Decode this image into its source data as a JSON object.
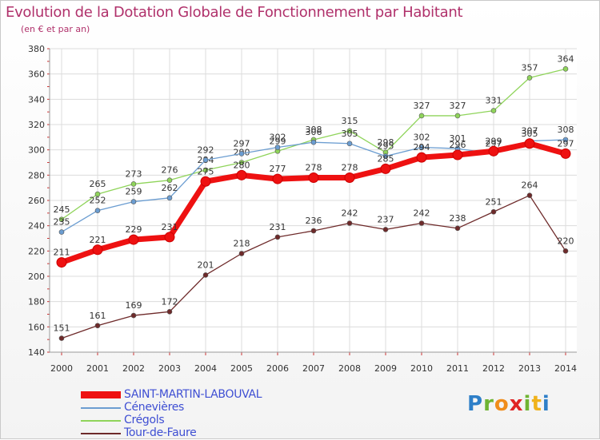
{
  "chart_data": {
    "type": "line",
    "title": "Evolution de la Dotation Globale de Fonctionnement par Habitant",
    "subtitle": "(en € et par an)",
    "xlabel": "",
    "ylabel": "",
    "ylim": [
      140,
      380
    ],
    "yticks": [
      140,
      160,
      180,
      200,
      220,
      240,
      260,
      280,
      300,
      320,
      340,
      360,
      380
    ],
    "categories": [
      "2000",
      "2001",
      "2002",
      "2003",
      "2004",
      "2005",
      "2006",
      "2007",
      "2008",
      "2009",
      "2010",
      "2011",
      "2012",
      "2013",
      "2014"
    ],
    "grid": true,
    "legend_position": "bottom-left",
    "series": [
      {
        "name": "SAINT-MARTIN-LABOUVAL",
        "color": "#ee1111",
        "values": [
          211,
          221,
          229,
          231,
          275,
          280,
          277,
          278,
          278,
          285,
          294,
          296,
          299,
          305,
          297
        ]
      },
      {
        "name": "Cénevières",
        "color": "#6b9dd1",
        "values": [
          235,
          252,
          259,
          262,
          292,
          297,
          302,
          306,
          305,
          295,
          302,
          301,
          297,
          307,
          308
        ]
      },
      {
        "name": "Crégols",
        "color": "#8fd45a",
        "values": [
          245,
          265,
          273,
          276,
          284,
          290,
          299,
          308,
          315,
          298,
          327,
          327,
          331,
          357,
          364
        ]
      },
      {
        "name": "Tour-de-Faure",
        "color": "#6e2a2a",
        "values": [
          151,
          161,
          169,
          172,
          201,
          218,
          231,
          236,
          242,
          237,
          242,
          238,
          251,
          264,
          220
        ]
      }
    ]
  },
  "logo": {
    "text": "Proxiti",
    "letters": [
      "P",
      "r",
      "o",
      "x",
      "i",
      "t",
      "i"
    ]
  }
}
